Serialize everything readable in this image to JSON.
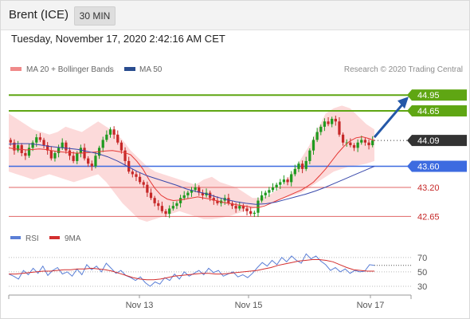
{
  "header": {
    "title": "Brent (ICE)",
    "timeframe": "30 MIN"
  },
  "timestamp": "Tuesday, November 17, 2020 2:42:16 AM CET",
  "legend": {
    "ma20": "MA 20 + Bollinger Bands",
    "ma50": "MA 50",
    "credit": "Research © 2020 Trading Central",
    "rsi": "RSI",
    "rsi_ma": "9MA"
  },
  "colors": {
    "up": "#1f9a1f",
    "down": "#c62828",
    "ma20": "#e53935",
    "ma50": "#3949ab",
    "bands": "#fbd3d3",
    "resistance": "#5fa613",
    "support": "#3d6be0",
    "support_red": "#e06666",
    "arrow": "#2458a8",
    "rsi": "#5b7fd6",
    "rsi_ma": "#d32f2f"
  },
  "chart_data": {
    "type": "candlestick",
    "x_labels": [
      "Nov 13",
      "Nov 15",
      "Nov 17"
    ],
    "ylim": [
      42.52,
      45.24
    ],
    "levels": [
      {
        "value": 44.95,
        "label": "44.95",
        "style": "resistance"
      },
      {
        "value": 44.65,
        "label": "44.65",
        "style": "resistance"
      },
      {
        "value": 44.09,
        "label": "44.09",
        "style": "current"
      },
      {
        "value": 43.6,
        "label": "43.60",
        "style": "support"
      },
      {
        "value": 43.2,
        "label": "43.20",
        "style": "support_red"
      },
      {
        "value": 42.65,
        "label": "42.65",
        "style": "support_red"
      }
    ],
    "price_closes": [
      44.05,
      43.9,
      44.0,
      43.85,
      43.8,
      43.95,
      44.05,
      44.15,
      44.1,
      44.0,
      43.9,
      43.75,
      43.85,
      43.95,
      44.05,
      43.9,
      43.8,
      43.7,
      43.85,
      43.95,
      43.75,
      43.65,
      43.6,
      43.8,
      43.95,
      44.1,
      44.2,
      44.3,
      44.2,
      44.05,
      43.9,
      43.7,
      43.5,
      43.45,
      43.4,
      43.3,
      43.25,
      43.1,
      43.0,
      42.9,
      42.85,
      42.75,
      42.7,
      42.8,
      42.85,
      42.9,
      43.0,
      43.05,
      43.1,
      43.15,
      43.2,
      43.1,
      43.05,
      43.1,
      43.0,
      42.95,
      42.9,
      42.95,
      43.0,
      42.9,
      42.85,
      42.8,
      42.85,
      42.8,
      42.75,
      42.7,
      42.72,
      42.95,
      43.05,
      43.1,
      43.15,
      43.2,
      43.25,
      43.3,
      43.35,
      43.3,
      43.45,
      43.55,
      43.65,
      43.55,
      43.7,
      43.9,
      44.1,
      44.25,
      44.35,
      44.45,
      44.4,
      44.5,
      44.45,
      44.2,
      44.05,
      44.05,
      44.0,
      43.95,
      44.05,
      44.1,
      44.05,
      44.0,
      44.09
    ],
    "ma20": [
      43.95,
      43.93,
      43.92,
      43.91,
      43.92,
      43.93,
      43.92,
      43.9,
      43.88,
      43.87,
      43.86,
      43.85,
      43.85,
      43.86,
      43.87,
      43.88,
      43.89,
      43.9,
      43.88,
      43.86,
      43.82,
      43.7,
      43.55,
      43.35,
      43.18,
      43.05,
      42.98,
      42.95,
      42.96,
      42.98,
      43.0,
      43.02,
      43.0,
      42.98,
      42.95,
      42.92,
      42.9,
      42.88,
      42.86,
      42.84,
      42.82,
      42.82,
      42.85,
      42.9,
      42.95,
      43.0,
      43.05,
      43.1,
      43.15,
      43.22,
      43.3,
      43.42,
      43.55,
      43.7,
      43.85,
      43.98,
      44.08,
      44.14,
      44.16,
      44.13,
      44.09
    ],
    "ma50": [
      44.02,
      44.03,
      44.03,
      44.01,
      43.98,
      43.96,
      43.94,
      43.92,
      43.88,
      43.84,
      43.78,
      43.7,
      43.6,
      43.5,
      43.42,
      43.36,
      43.3,
      43.24,
      43.17,
      43.12,
      43.08,
      43.02,
      42.97,
      42.93,
      42.9,
      42.88,
      42.89,
      42.92,
      42.97,
      43.02,
      43.07,
      43.13,
      43.2,
      43.28,
      43.36,
      43.44,
      43.52,
      43.6
    ],
    "bb_upper": [
      44.6,
      44.5,
      44.4,
      44.3,
      44.25,
      44.2,
      44.25,
      44.35,
      44.3,
      44.25,
      44.35,
      44.45,
      44.35,
      44.25,
      44.1,
      43.9,
      43.75,
      43.6,
      43.5,
      43.45,
      43.4,
      43.35,
      43.3,
      43.25,
      43.35,
      43.4,
      43.3,
      43.25,
      43.2,
      43.1,
      43.0,
      43.0,
      43.05,
      43.15,
      43.3,
      43.5,
      43.75,
      44.0,
      44.3,
      44.6,
      44.7,
      44.75,
      44.7,
      44.55,
      44.4,
      44.3
    ],
    "bb_lower": [
      43.5,
      43.45,
      43.4,
      43.35,
      43.4,
      43.45,
      43.4,
      43.35,
      43.3,
      43.35,
      43.4,
      43.45,
      43.3,
      43.1,
      42.9,
      42.75,
      42.6,
      42.55,
      42.6,
      42.65,
      42.7,
      42.75,
      42.7,
      42.65,
      42.6,
      42.6,
      42.62,
      42.65,
      42.7,
      42.75,
      42.8,
      42.85,
      42.9,
      42.95,
      43.0,
      43.05,
      43.1,
      43.2,
      43.3,
      43.4,
      43.5,
      43.55,
      43.6,
      43.62,
      43.65,
      43.7
    ],
    "rsi_ticks": [
      70,
      50,
      30
    ],
    "rsi_ylim": [
      20,
      82
    ],
    "rsi": [
      47,
      44,
      40,
      52,
      46,
      55,
      48,
      58,
      45,
      52,
      56,
      47,
      50,
      44,
      54,
      46,
      60,
      53,
      58,
      50,
      62,
      55,
      48,
      52,
      45,
      42,
      38,
      43,
      35,
      30,
      36,
      33,
      42,
      38,
      47,
      40,
      50,
      44,
      48,
      52,
      46,
      55,
      49,
      52,
      44,
      47,
      50,
      43,
      46,
      42,
      48,
      56,
      63,
      58,
      66,
      60,
      70,
      64,
      72,
      66,
      62,
      75,
      68,
      72,
      65,
      60,
      52,
      56,
      50,
      54,
      48,
      52,
      50,
      51,
      60,
      59
    ],
    "rsi_ma": [
      47,
      47,
      48,
      49,
      50,
      51,
      51,
      52,
      53,
      53,
      54,
      54,
      55,
      54,
      53,
      51,
      48,
      45,
      42,
      40,
      39,
      39,
      40,
      42,
      44,
      45,
      46,
      47,
      48,
      48,
      47,
      47,
      48,
      49,
      50,
      51,
      52,
      54,
      56,
      59,
      61,
      63,
      65,
      66,
      67,
      67,
      66,
      64,
      60,
      56,
      53,
      52,
      51,
      51
    ]
  }
}
